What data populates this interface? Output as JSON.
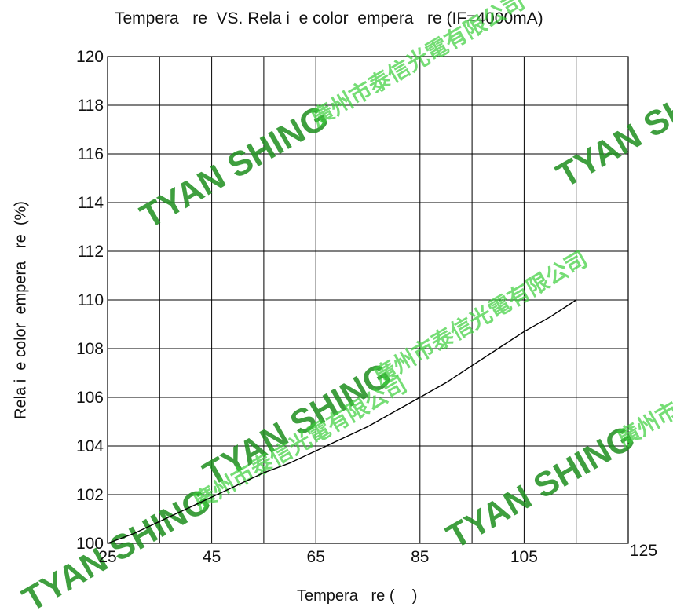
{
  "chart_data": {
    "type": "line",
    "title": "Tempera   re  VS. Rela i  e color  empera   re (IF=4000mA)",
    "xlabel": "Tempera   re (    )",
    "ylabel": "Rela i  e color  empera   re  (%)",
    "xlim": [
      25,
      125
    ],
    "ylim": [
      100,
      120
    ],
    "x_ticks": [
      25,
      45,
      65,
      85,
      105,
      125
    ],
    "y_ticks": [
      100,
      102,
      104,
      106,
      108,
      110,
      112,
      114,
      116,
      118,
      120
    ],
    "x_grid": [
      25,
      35,
      45,
      55,
      65,
      75,
      85,
      95,
      105,
      115,
      125
    ],
    "grid": true,
    "series": [
      {
        "x": [
          25,
          30,
          35,
          40,
          45,
          50,
          55,
          60,
          65,
          70,
          75,
          80,
          85,
          90,
          95,
          100,
          105,
          110,
          115
        ],
        "y": [
          100.0,
          100.4,
          100.9,
          101.4,
          101.9,
          102.4,
          102.9,
          103.3,
          103.8,
          104.3,
          104.8,
          105.4,
          106.0,
          106.6,
          107.3,
          108.0,
          108.7,
          109.3,
          110.0
        ],
        "color": "#000000"
      }
    ]
  },
  "watermark": {
    "brand": "TYAN SHING",
    "chinese": "廣州市泰信光電有限公司",
    "color": "#1e8f1e"
  }
}
